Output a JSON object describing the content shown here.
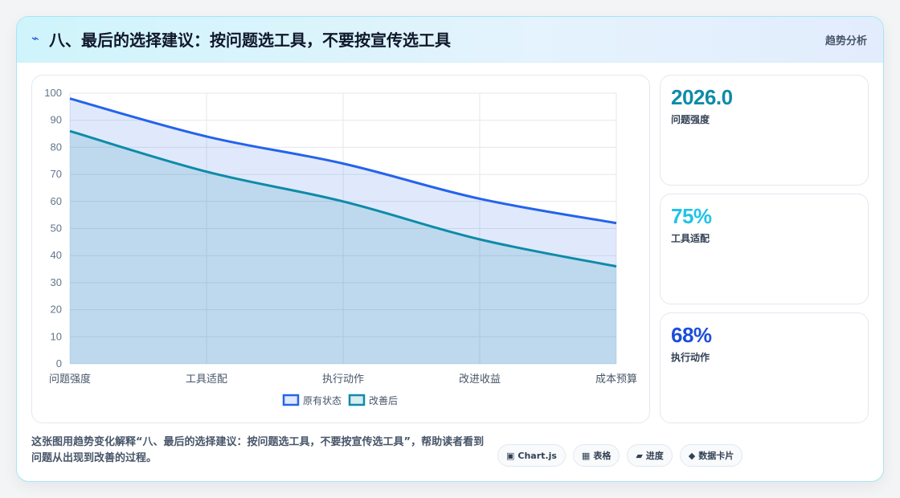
{
  "header": {
    "icon": "bolt-icon",
    "title": "八、最后的选择建议：按问题选工具，不要按宣传选工具",
    "tag": "趋势分析"
  },
  "chart_data": {
    "type": "area",
    "categories": [
      "问题强度",
      "工具适配",
      "执行动作",
      "改进收益",
      "成本预算"
    ],
    "series": [
      {
        "name": "原有状态",
        "values": [
          98,
          84,
          74,
          61,
          52
        ],
        "color": "#2563eb"
      },
      {
        "name": "改善后",
        "values": [
          86,
          71,
          60,
          46,
          36
        ],
        "color": "#0e8ba8"
      }
    ],
    "ylim": [
      0,
      100
    ],
    "yticks": [
      0,
      10,
      20,
      30,
      40,
      50,
      60,
      70,
      80,
      90,
      100
    ],
    "grid": true,
    "legend": "bottom"
  },
  "stats": [
    {
      "value": "2026.0",
      "label": "问题强度",
      "color": "#0e8ba8"
    },
    {
      "value": "75%",
      "label": "工具适配",
      "color": "#22c3e6"
    },
    {
      "value": "68%",
      "label": "执行动作",
      "color": "#1d4ed8"
    }
  ],
  "footer": {
    "description": "这张图用趋势变化解释“八、最后的选择建议：按问题选工具，不要按宣传选工具”，帮助读者看到问题从出现到改善的过程。",
    "pills": [
      {
        "icon": "▣",
        "label": "Chart.js"
      },
      {
        "icon": "▦",
        "label": "表格"
      },
      {
        "icon": "▰",
        "label": "进度"
      },
      {
        "icon": "◆",
        "label": "数据卡片"
      }
    ]
  }
}
